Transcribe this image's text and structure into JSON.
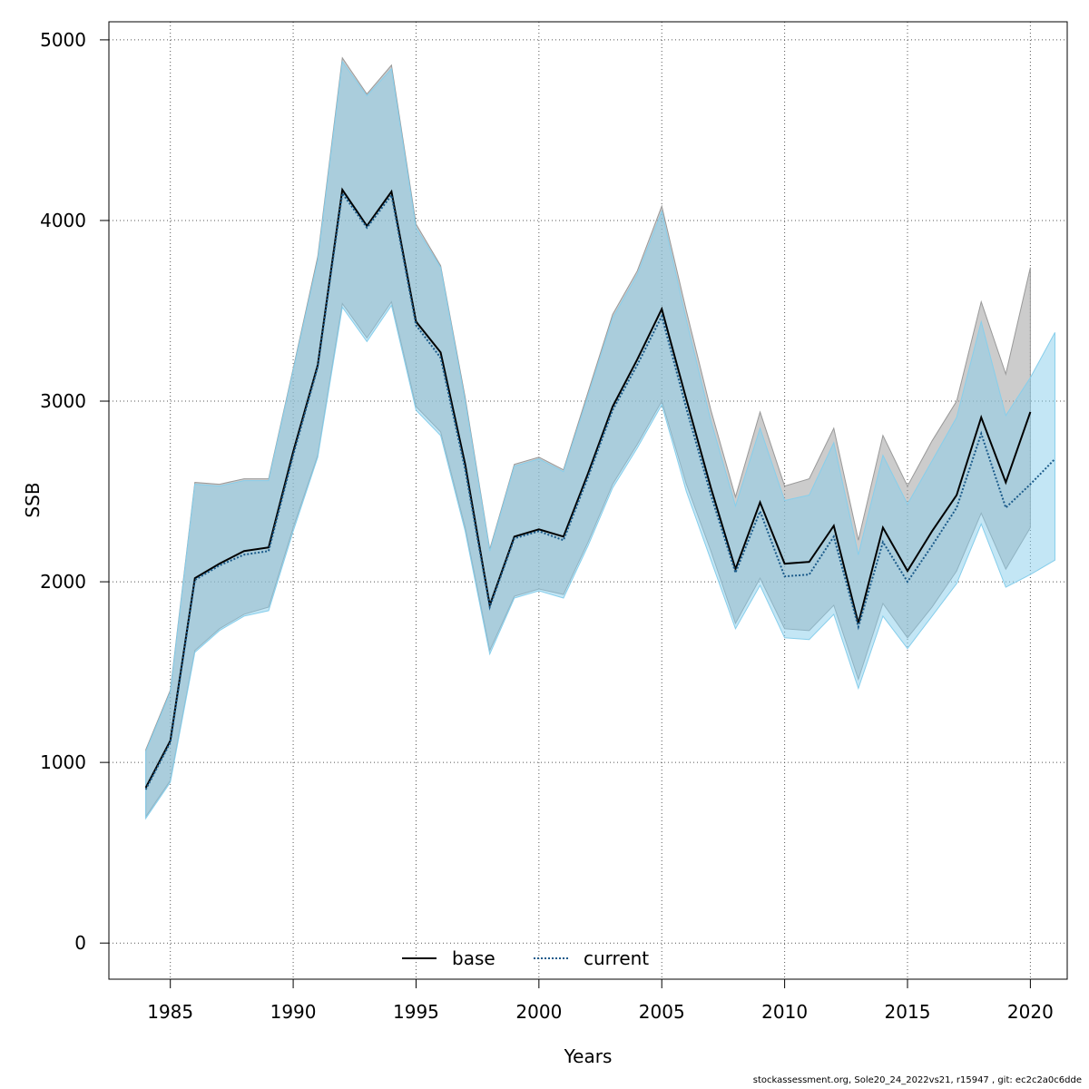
{
  "chart_data": {
    "type": "line",
    "xlabel": "Years",
    "ylabel": "SSB",
    "xlim": [
      1982.5,
      2021.5
    ],
    "ylim": [
      -200,
      5100
    ],
    "x_ticks": [
      1985,
      1990,
      1995,
      2000,
      2005,
      2010,
      2015,
      2020
    ],
    "y_ticks": [
      0,
      1000,
      2000,
      3000,
      4000,
      5000
    ],
    "grid": true,
    "legend_position": "bottom-center",
    "series": [
      {
        "name": "base",
        "line_style": "solid",
        "line_color": "#000000",
        "band_color": "#999999",
        "x": [
          1984,
          1985,
          1986,
          1987,
          1988,
          1989,
          1990,
          1991,
          1992,
          1993,
          1994,
          1995,
          1996,
          1997,
          1998,
          1999,
          2000,
          2001,
          2002,
          2003,
          2004,
          2005,
          2006,
          2007,
          2008,
          2009,
          2010,
          2011,
          2012,
          2013,
          2014,
          2015,
          2016,
          2017,
          2018,
          2019,
          2020
        ],
        "values": [
          860,
          1120,
          2020,
          2100,
          2170,
          2190,
          2720,
          3200,
          4170,
          3970,
          4160,
          3440,
          3270,
          2650,
          1870,
          2250,
          2290,
          2250,
          2600,
          2970,
          3230,
          3510,
          3010,
          2520,
          2070,
          2440,
          2100,
          2110,
          2310,
          1770,
          2300,
          2060,
          2280,
          2480,
          2910,
          2550,
          2940
        ],
        "lower": [
          700,
          900,
          1620,
          1740,
          1820,
          1860,
          2300,
          2700,
          3540,
          3350,
          3550,
          2970,
          2830,
          2300,
          1620,
          1920,
          1960,
          1930,
          2220,
          2540,
          2760,
          3000,
          2540,
          2170,
          1770,
          2020,
          1740,
          1730,
          1870,
          1460,
          1880,
          1690,
          1860,
          2060,
          2380,
          2070,
          2300
        ],
        "upper": [
          1070,
          1400,
          2550,
          2540,
          2570,
          2570,
          3180,
          3800,
          4900,
          4700,
          4860,
          3980,
          3750,
          3020,
          2180,
          2650,
          2690,
          2620,
          3050,
          3480,
          3720,
          4080,
          3500,
          2950,
          2470,
          2940,
          2530,
          2570,
          2850,
          2230,
          2810,
          2530,
          2780,
          3000,
          3550,
          3150,
          3740
        ]
      },
      {
        "name": "current",
        "line_style": "dotted",
        "line_color": "#1a5a8a",
        "band_color": "#87ceeb",
        "x": [
          1984,
          1985,
          1986,
          1987,
          1988,
          1989,
          1990,
          1991,
          1992,
          1993,
          1994,
          1995,
          1996,
          1997,
          1998,
          1999,
          2000,
          2001,
          2002,
          2003,
          2004,
          2005,
          2006,
          2007,
          2008,
          2009,
          2010,
          2011,
          2012,
          2013,
          2014,
          2015,
          2016,
          2017,
          2018,
          2019,
          2020,
          2021
        ],
        "values": [
          850,
          1110,
          2010,
          2090,
          2150,
          2170,
          2700,
          3190,
          4150,
          3960,
          4140,
          3420,
          3240,
          2620,
          1860,
          2240,
          2280,
          2230,
          2580,
          2950,
          3200,
          3470,
          2960,
          2480,
          2050,
          2390,
          2030,
          2040,
          2250,
          1750,
          2220,
          2000,
          2200,
          2410,
          2820,
          2410,
          2540,
          2680
        ],
        "lower": [
          690,
          890,
          1610,
          1730,
          1810,
          1840,
          2280,
          2690,
          3520,
          3330,
          3530,
          2950,
          2810,
          2280,
          1600,
          1910,
          1950,
          1910,
          2200,
          2520,
          2740,
          2980,
          2500,
          2120,
          1740,
          1980,
          1690,
          1680,
          1820,
          1410,
          1810,
          1630,
          1810,
          1990,
          2320,
          1970,
          2040,
          2120
        ],
        "upper": [
          1060,
          1390,
          2540,
          2530,
          2560,
          2560,
          3170,
          3780,
          4880,
          4690,
          4840,
          3960,
          3740,
          3000,
          2170,
          2640,
          2680,
          2610,
          3030,
          3460,
          3700,
          4050,
          3450,
          2890,
          2420,
          2850,
          2450,
          2480,
          2770,
          2150,
          2700,
          2430,
          2670,
          2910,
          3440,
          2920,
          3130,
          3380
        ]
      }
    ]
  },
  "footer": "stockassessment.org, Sole20_24_2022vs21, r15947 , git: ec2c2a0c6dde"
}
